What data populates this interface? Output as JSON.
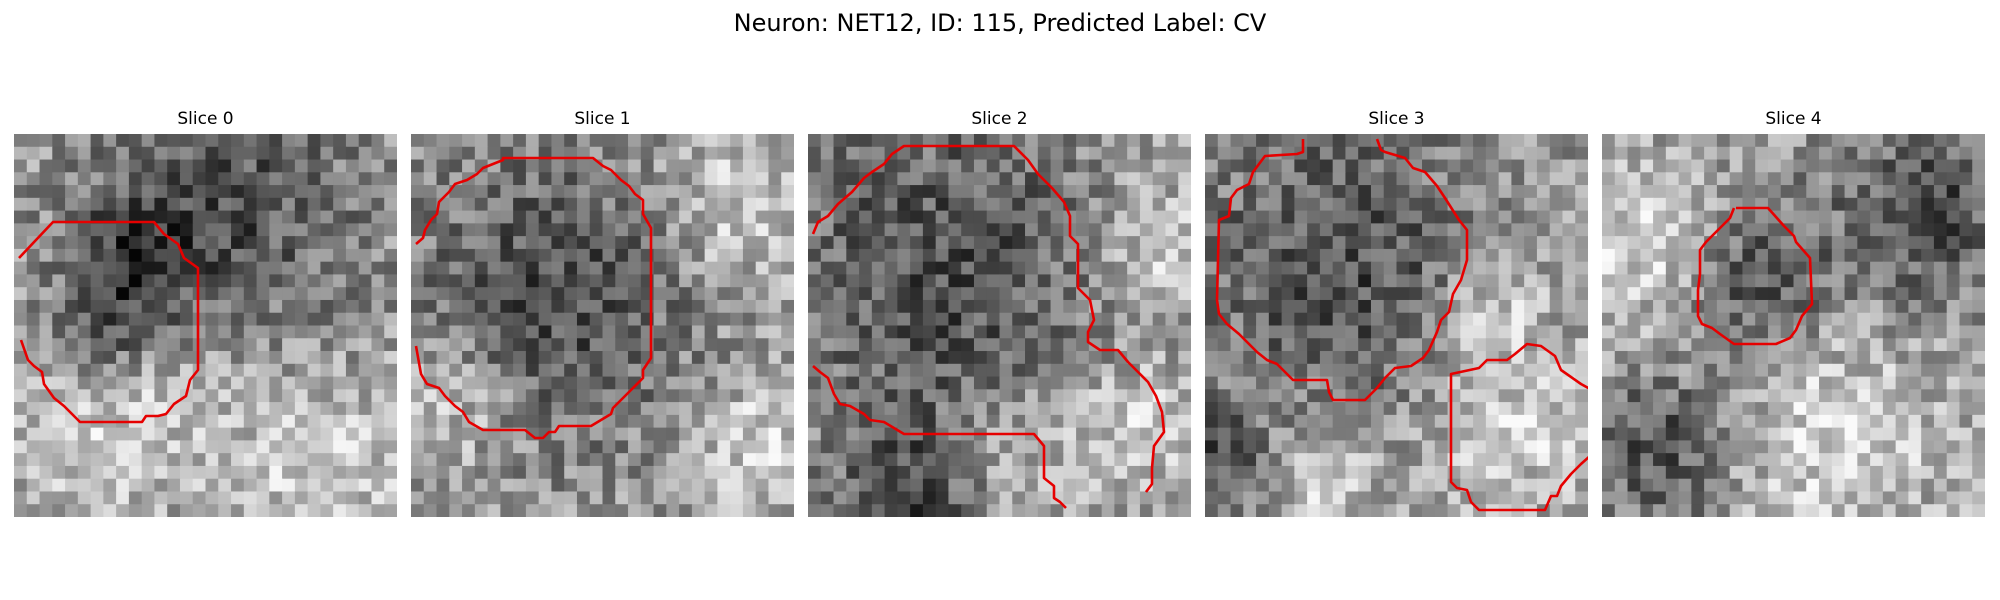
{
  "figure": {
    "title": "Neuron: NET12, ID: 115, Predicted Label: CV"
  },
  "panels": [
    {
      "title": "Slice 0",
      "seed": 11,
      "dark_blobs": [
        [
          0.55,
          0.2,
          0.25
        ],
        [
          0.3,
          0.35,
          0.12
        ],
        [
          0.2,
          0.55,
          0.1
        ]
      ],
      "light_blobs": [
        [
          0.25,
          0.7,
          0.2
        ],
        [
          0.8,
          0.85,
          0.15
        ]
      ]
    },
    {
      "title": "Slice 1",
      "seed": 23,
      "dark_blobs": [
        [
          0.38,
          0.42,
          0.28
        ]
      ],
      "light_blobs": [
        [
          0.1,
          0.7,
          0.12
        ],
        [
          0.85,
          0.2,
          0.15
        ],
        [
          0.9,
          0.8,
          0.12
        ]
      ]
    },
    {
      "title": "Slice 2",
      "seed": 37,
      "dark_blobs": [
        [
          0.35,
          0.35,
          0.32
        ],
        [
          0.3,
          0.95,
          0.15
        ]
      ],
      "light_blobs": [
        [
          0.9,
          0.3,
          0.12
        ],
        [
          0.85,
          0.75,
          0.12
        ],
        [
          0.5,
          0.85,
          0.12
        ]
      ]
    },
    {
      "title": "Slice 3",
      "seed": 49,
      "dark_blobs": [
        [
          0.35,
          0.35,
          0.28
        ],
        [
          0.05,
          0.85,
          0.1
        ]
      ],
      "light_blobs": [
        [
          0.8,
          0.75,
          0.15
        ],
        [
          0.3,
          0.9,
          0.12
        ],
        [
          0.75,
          0.45,
          0.1
        ]
      ]
    },
    {
      "title": "Slice 4",
      "seed": 61,
      "dark_blobs": [
        [
          0.4,
          0.37,
          0.13
        ],
        [
          0.85,
          0.2,
          0.18
        ],
        [
          0.15,
          0.82,
          0.14
        ]
      ],
      "light_blobs": [
        [
          0.6,
          0.8,
          0.2
        ],
        [
          0.1,
          0.3,
          0.15
        ]
      ]
    }
  ]
}
